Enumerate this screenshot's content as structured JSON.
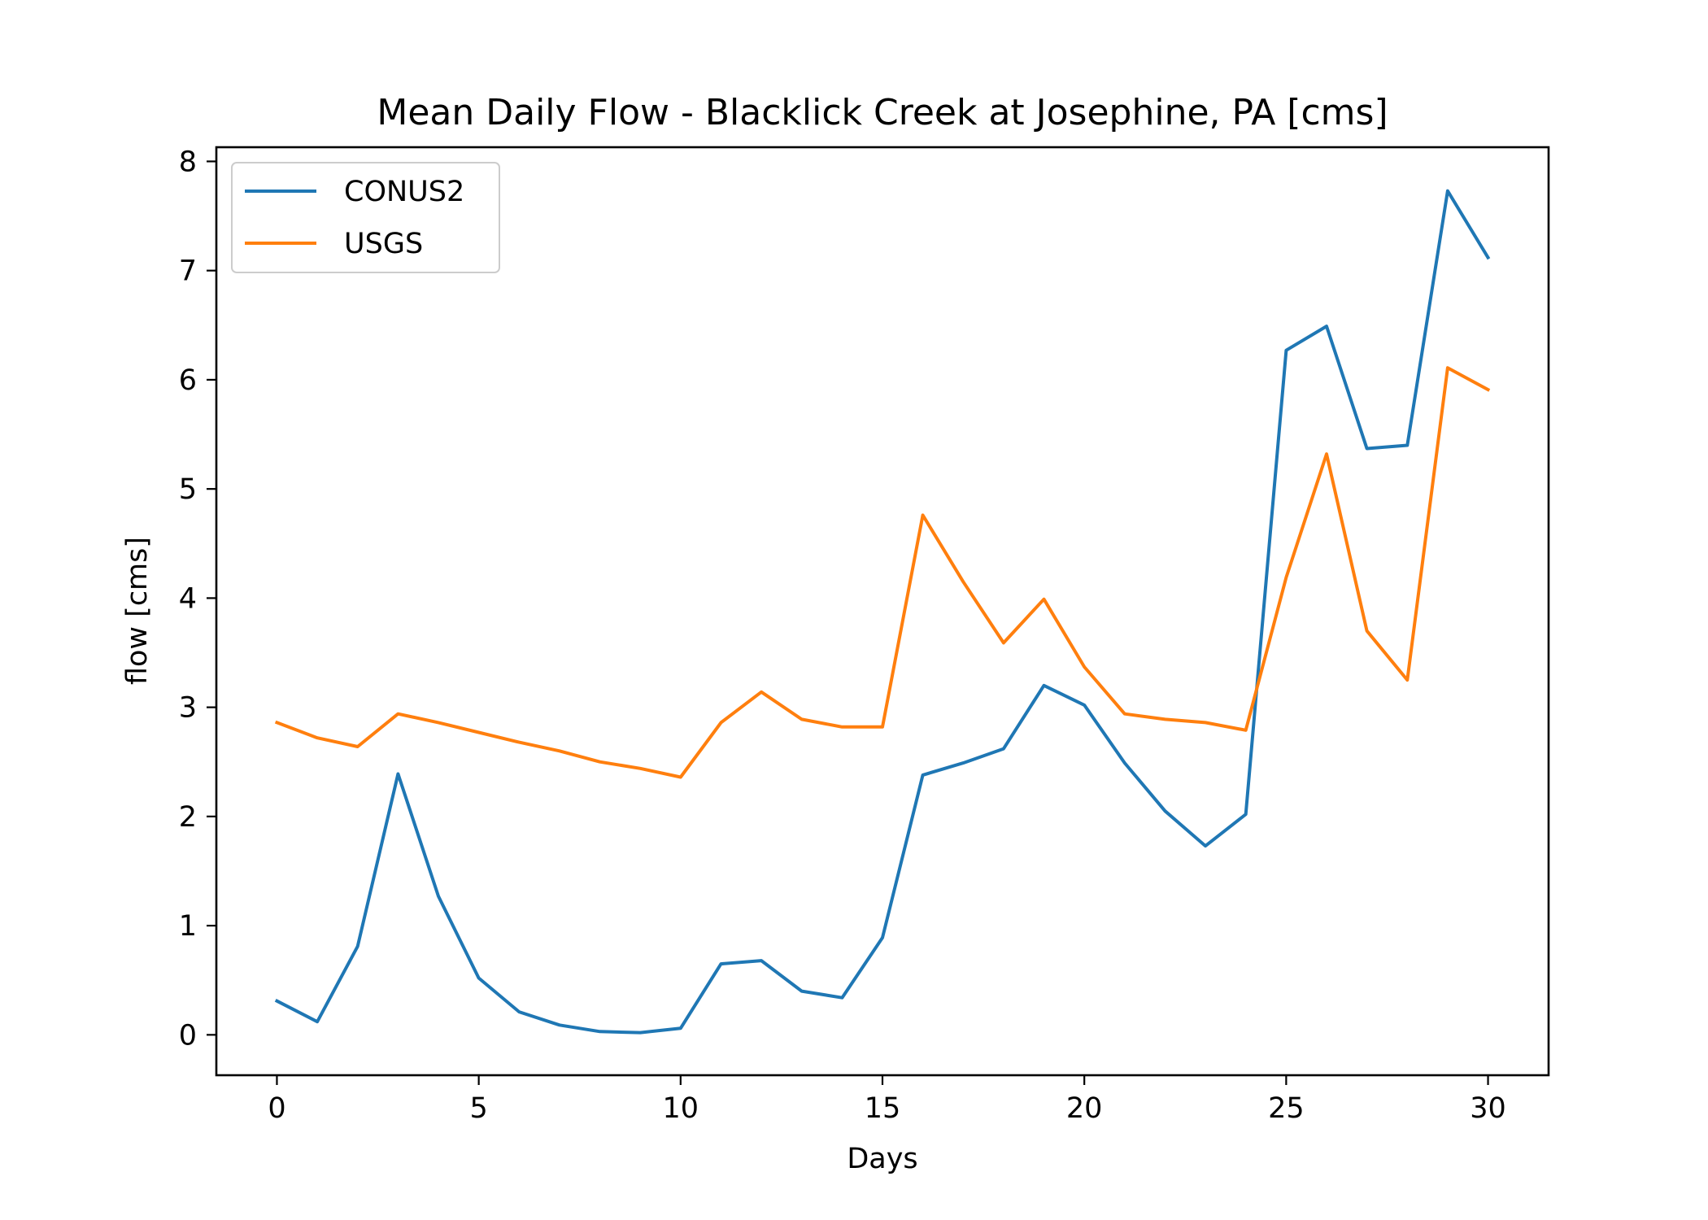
{
  "chart_data": {
    "type": "line",
    "title": "Mean Daily Flow - Blacklick Creek at Josephine, PA [cms]",
    "xlabel": "Days",
    "ylabel": "flow [cms]",
    "xlim": [
      -1.5,
      31.5
    ],
    "ylim": [
      -0.37,
      8.13
    ],
    "xticks": [
      0,
      5,
      10,
      15,
      20,
      25,
      30
    ],
    "yticks": [
      0,
      1,
      2,
      3,
      4,
      5,
      6,
      7,
      8
    ],
    "grid": false,
    "legend_position": "top-left",
    "x": [
      0,
      1,
      2,
      3,
      4,
      5,
      6,
      7,
      8,
      9,
      10,
      11,
      12,
      13,
      14,
      15,
      16,
      17,
      18,
      19,
      20,
      21,
      22,
      23,
      24,
      25,
      26,
      27,
      28,
      29,
      30
    ],
    "series": [
      {
        "name": "CONUS2",
        "color": "#1f77b4",
        "values": [
          0.31,
          0.12,
          0.81,
          2.39,
          1.27,
          0.52,
          0.21,
          0.09,
          0.03,
          0.02,
          0.06,
          0.65,
          0.68,
          0.4,
          0.34,
          0.89,
          2.38,
          2.49,
          2.62,
          3.2,
          3.02,
          2.49,
          2.05,
          1.73,
          2.02,
          6.27,
          6.49,
          5.37,
          5.4,
          7.73,
          7.12
        ]
      },
      {
        "name": "USGS",
        "color": "#ff7f0e",
        "values": [
          2.86,
          2.72,
          2.64,
          2.94,
          2.86,
          2.77,
          2.68,
          2.6,
          2.5,
          2.44,
          2.36,
          2.86,
          3.14,
          2.89,
          2.82,
          2.82,
          4.76,
          4.15,
          3.59,
          3.99,
          3.37,
          2.94,
          2.89,
          2.86,
          2.79,
          4.19,
          5.32,
          3.7,
          3.25,
          6.11,
          5.91
        ]
      }
    ]
  }
}
